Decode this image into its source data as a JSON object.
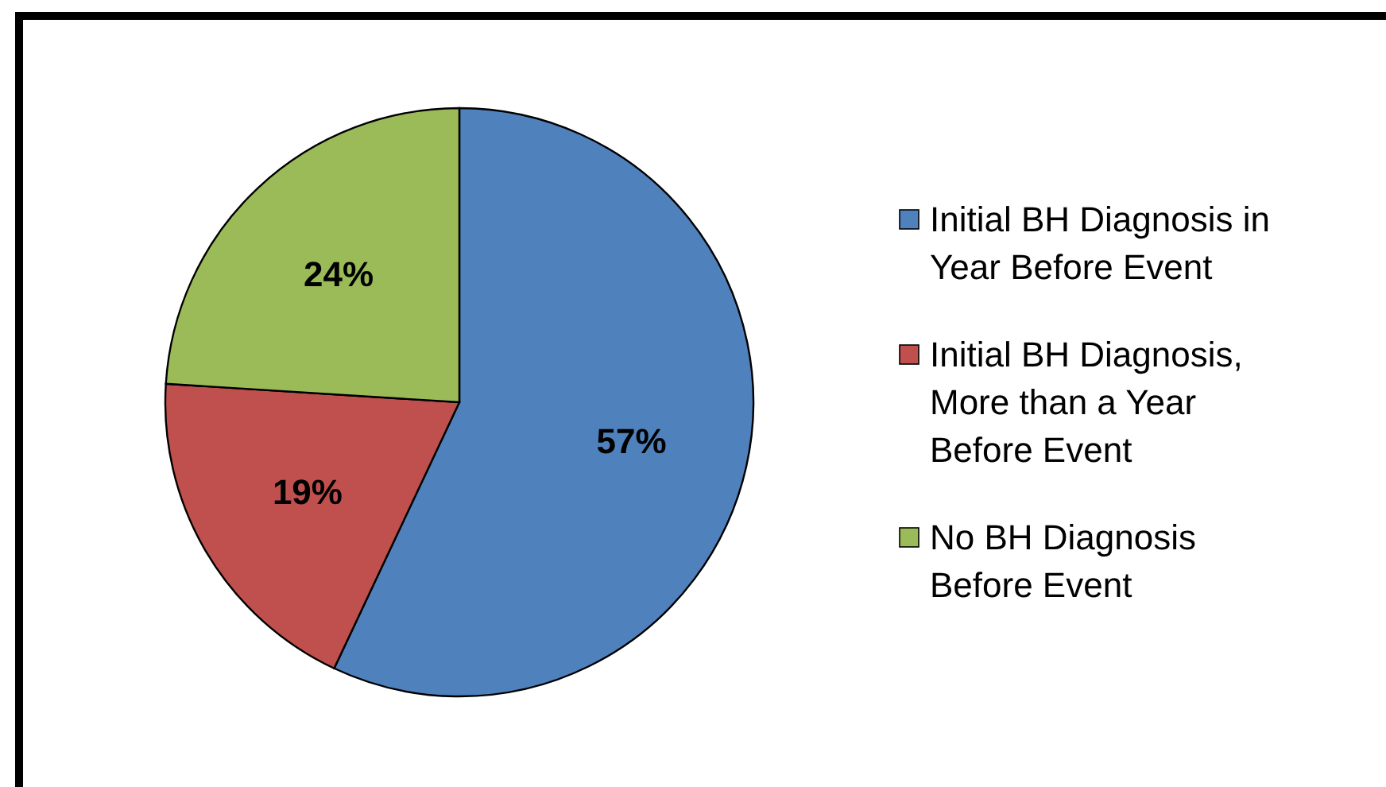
{
  "chart_data": {
    "type": "pie",
    "categories": [
      "Initial BH Diagnosis in Year Before Event",
      "Initial BH Diagnosis, More than a Year Before Event",
      "No BH Diagnosis Before Event"
    ],
    "values": [
      57,
      19,
      24
    ],
    "value_labels": [
      "57%",
      "19%",
      "24%"
    ],
    "colors": [
      "#4f81bd",
      "#c0504d",
      "#9bbb59"
    ],
    "legend": "right"
  }
}
